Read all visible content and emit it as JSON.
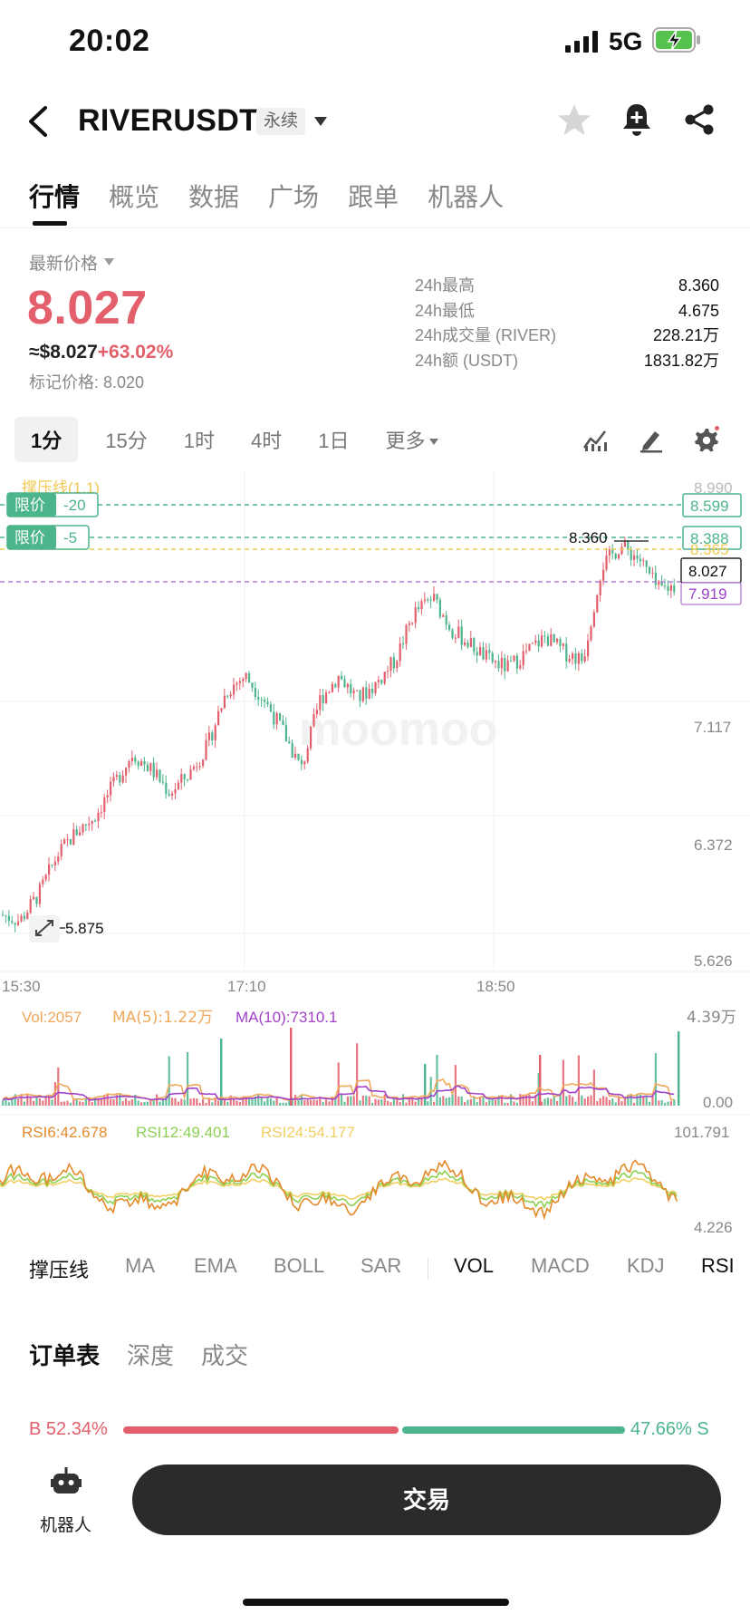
{
  "status_bar": {
    "time": "20:02",
    "network": "5G"
  },
  "header": {
    "symbol": "RIVERUSDT",
    "contract_type": "永续"
  },
  "main_tabs": [
    {
      "label": "行情",
      "active": true
    },
    {
      "label": "概览"
    },
    {
      "label": "数据"
    },
    {
      "label": "广场"
    },
    {
      "label": "跟单"
    },
    {
      "label": "机器人"
    }
  ],
  "price": {
    "latest_label": "最新价格",
    "latest": "8.027",
    "usd_price": "≈$8.027",
    "change_pct": "+63.02%",
    "mark_price": "标记价格: 8.020"
  },
  "stats": [
    {
      "label": "24h最高",
      "value": "8.360"
    },
    {
      "label": "24h最低",
      "value": "4.675"
    },
    {
      "label": "24h成交量 (RIVER)",
      "value": "228.21万"
    },
    {
      "label": "24h额 (USDT)",
      "value": "1831.82万"
    }
  ],
  "intervals": [
    "1分",
    "15分",
    "1时",
    "4时",
    "1日"
  ],
  "more_label": "更多",
  "chart": {
    "watermark": "moomoo",
    "support_line_label": "撑压线(1,1)",
    "limit_orders": [
      {
        "label": "限价",
        "qty": "-20",
        "price": "8.599"
      },
      {
        "label": "限价",
        "qty": "-5",
        "price": "8.388"
      }
    ],
    "level_yellow": "8.365",
    "level_top": "8.990",
    "current_price": "8.027",
    "level_purple": "7.919",
    "high_label": "8.360",
    "low_label": "5.875",
    "y_axis_labels": [
      "7.117",
      "6.372",
      "5.626"
    ],
    "x_axis_labels": [
      "15:30",
      "17:10",
      "18:50"
    ],
    "colors": {
      "up": "#e35f6c",
      "down": "#4cb58b",
      "ma5": "#f0a85b",
      "ma10": "#a142c9"
    }
  },
  "chart_data": {
    "type": "candlestick",
    "ylim": [
      5.626,
      8.99
    ],
    "x_ticks": [
      "15:30",
      "17:10",
      "18:50"
    ],
    "close_path": [
      5.92,
      5.88,
      6.05,
      6.3,
      6.45,
      6.55,
      6.75,
      6.95,
      6.85,
      6.7,
      6.82,
      7.0,
      7.35,
      7.45,
      7.3,
      7.1,
      6.85,
      7.3,
      7.45,
      7.3,
      7.4,
      7.55,
      7.85,
      7.95,
      7.75,
      7.65,
      7.55,
      7.5,
      7.6,
      7.7,
      7.6,
      7.55,
      8.15,
      8.28,
      8.2,
      8.0,
      8.027
    ]
  },
  "volume": {
    "vol_label": "Vol:2057",
    "ma5_label": "MA(5):1.22万",
    "ma10_label": "MA(10):7310.1",
    "max_label": "4.39万",
    "min_label": "0.00"
  },
  "rsi": {
    "rsi6_label": "RSI6:42.678",
    "rsi12_label": "RSI12:49.401",
    "rsi24_label": "RSI24:54.177",
    "max_label": "101.791",
    "min_label": "4.226",
    "colors": {
      "rsi6": "#e58a2a",
      "rsi12": "#8cd053",
      "rsi24": "#f2cf63"
    }
  },
  "indicator_tabs": [
    {
      "label": "撑压线",
      "on": true
    },
    {
      "label": "MA"
    },
    {
      "label": "EMA"
    },
    {
      "label": "BOLL"
    },
    {
      "label": "SAR"
    },
    {
      "label": "VOL",
      "on": true
    },
    {
      "label": "MACD"
    },
    {
      "label": "KDJ"
    },
    {
      "label": "RSI",
      "on": true
    }
  ],
  "orderbook_tabs": [
    {
      "label": "订单表",
      "on": true
    },
    {
      "label": "深度"
    },
    {
      "label": "成交"
    }
  ],
  "ratio": {
    "buy_label": "B 52.34%",
    "sell_label": "47.66% S",
    "buy": 52.34,
    "sell": 47.66
  },
  "bottom": {
    "robot_label": "机器人",
    "trade_label": "交易"
  }
}
